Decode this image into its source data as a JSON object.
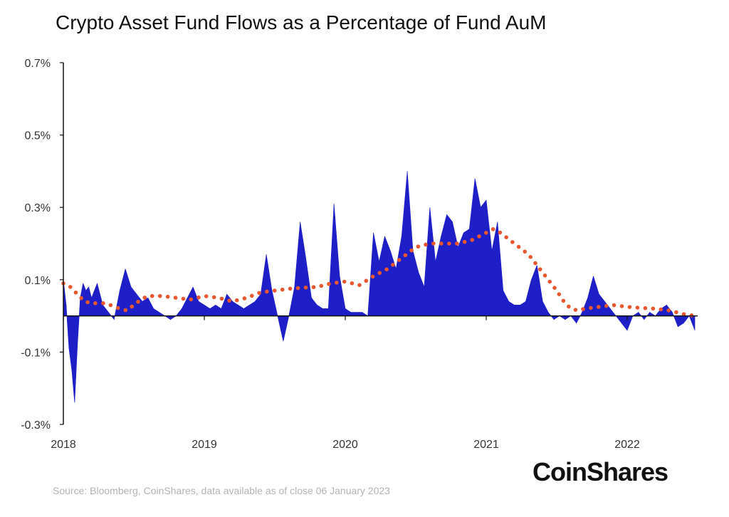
{
  "chart_data": {
    "type": "area",
    "title": "Crypto Asset Fund Flows as a Percentage of Fund AuM",
    "y_unit": "%",
    "ylim": [
      -0.3,
      0.7
    ],
    "yticks": [
      -0.3,
      -0.1,
      0.1,
      0.3,
      0.5,
      0.7
    ],
    "ytick_labels": [
      "-0.3%",
      "-0.1%",
      "0.1%",
      "0.3%",
      "0.5%",
      "0.7%"
    ],
    "xlim": [
      2018.0,
      2022.5
    ],
    "xticks": [
      2018,
      2019,
      2020,
      2021,
      2022
    ],
    "xtick_labels": [
      "2018",
      "2019",
      "2020",
      "2021",
      "2022"
    ],
    "grid": false,
    "legend": "none",
    "colors": {
      "flows": "#1f1fc8",
      "average": "#e8572f"
    },
    "series": [
      {
        "kind": "area",
        "x": [
          2018.0,
          2018.02,
          2018.04,
          2018.06,
          2018.08,
          2018.1,
          2018.12,
          2018.14,
          2018.16,
          2018.18,
          2018.2,
          2018.24,
          2018.28,
          2018.32,
          2018.36,
          2018.4,
          2018.44,
          2018.48,
          2018.52,
          2018.56,
          2018.6,
          2018.64,
          2018.68,
          2018.72,
          2018.76,
          2018.8,
          2018.84,
          2018.88,
          2018.92,
          2018.96,
          2019.0,
          2019.04,
          2019.08,
          2019.12,
          2019.16,
          2019.2,
          2019.24,
          2019.28,
          2019.32,
          2019.36,
          2019.4,
          2019.44,
          2019.48,
          2019.52,
          2019.56,
          2019.6,
          2019.64,
          2019.68,
          2019.72,
          2019.76,
          2019.8,
          2019.84,
          2019.88,
          2019.92,
          2019.96,
          2020.0,
          2020.04,
          2020.08,
          2020.12,
          2020.16,
          2020.2,
          2020.24,
          2020.28,
          2020.32,
          2020.36,
          2020.4,
          2020.44,
          2020.48,
          2020.52,
          2020.56,
          2020.6,
          2020.64,
          2020.68,
          2020.72,
          2020.76,
          2020.8,
          2020.84,
          2020.88,
          2020.92,
          2020.96,
          2021.0,
          2021.04,
          2021.08,
          2021.12,
          2021.16,
          2021.2,
          2021.24,
          2021.28,
          2021.32,
          2021.36,
          2021.4,
          2021.44,
          2021.48,
          2021.52,
          2021.56,
          2021.6,
          2021.64,
          2021.68,
          2021.72,
          2021.76,
          2021.8,
          2021.84,
          2021.88,
          2021.92,
          2021.96,
          2022.0,
          2022.04,
          2022.08,
          2022.12,
          2022.16,
          2022.2,
          2022.24,
          2022.28,
          2022.32,
          2022.36,
          2022.4,
          2022.44,
          2022.48
        ],
        "y": [
          0.1,
          0.03,
          -0.09,
          -0.15,
          -0.24,
          -0.08,
          0.05,
          0.09,
          0.07,
          0.08,
          0.05,
          0.09,
          0.03,
          0.01,
          -0.01,
          0.07,
          0.13,
          0.08,
          0.06,
          0.04,
          0.05,
          0.02,
          0.01,
          0.0,
          -0.01,
          0.0,
          0.02,
          0.05,
          0.08,
          0.04,
          0.03,
          0.02,
          0.03,
          0.02,
          0.06,
          0.04,
          0.03,
          0.02,
          0.03,
          0.04,
          0.06,
          0.17,
          0.07,
          0.0,
          -0.07,
          0.0,
          0.08,
          0.26,
          0.16,
          0.05,
          0.03,
          0.02,
          0.02,
          0.31,
          0.11,
          0.02,
          0.01,
          0.01,
          0.01,
          0.0,
          0.23,
          0.15,
          0.22,
          0.18,
          0.13,
          0.22,
          0.4,
          0.18,
          0.12,
          0.08,
          0.3,
          0.15,
          0.22,
          0.28,
          0.26,
          0.19,
          0.23,
          0.24,
          0.38,
          0.3,
          0.32,
          0.18,
          0.26,
          0.07,
          0.04,
          0.03,
          0.03,
          0.04,
          0.1,
          0.14,
          0.04,
          0.01,
          -0.01,
          0.0,
          -0.01,
          0.0,
          -0.02,
          0.01,
          0.05,
          0.11,
          0.06,
          0.04,
          0.02,
          0.0,
          -0.02,
          -0.04,
          0.0,
          0.01,
          -0.01,
          0.01,
          0.0,
          0.02,
          0.03,
          0.01,
          -0.03,
          -0.02,
          0.0,
          -0.04
        ]
      },
      {
        "kind": "dotted-line",
        "x": [
          2018.0,
          2018.05,
          2018.1,
          2018.15,
          2018.2,
          2018.3,
          2018.4,
          2018.45,
          2018.5,
          2018.55,
          2018.6,
          2018.7,
          2018.8,
          2018.9,
          2019.0,
          2019.1,
          2019.2,
          2019.3,
          2019.4,
          2019.5,
          2019.6,
          2019.7,
          2019.8,
          2019.9,
          2020.0,
          2020.1,
          2020.2,
          2020.3,
          2020.4,
          2020.5,
          2020.6,
          2020.7,
          2020.8,
          2020.9,
          2021.0,
          2021.05,
          2021.1,
          2021.2,
          2021.3,
          2021.4,
          2021.5,
          2021.55,
          2021.6,
          2021.65,
          2021.7,
          2021.8,
          2021.9,
          2022.0,
          2022.1,
          2022.2,
          2022.3,
          2022.4,
          2022.48
        ],
        "y": [
          0.09,
          0.08,
          0.06,
          0.04,
          0.035,
          0.035,
          0.02,
          0.015,
          0.03,
          0.045,
          0.055,
          0.055,
          0.05,
          0.045,
          0.055,
          0.05,
          0.04,
          0.05,
          0.065,
          0.07,
          0.075,
          0.078,
          0.08,
          0.09,
          0.095,
          0.085,
          0.11,
          0.13,
          0.16,
          0.19,
          0.2,
          0.2,
          0.2,
          0.21,
          0.23,
          0.24,
          0.23,
          0.2,
          0.17,
          0.12,
          0.07,
          0.04,
          0.02,
          0.015,
          0.02,
          0.025,
          0.03,
          0.025,
          0.022,
          0.02,
          0.015,
          0.005,
          0.0
        ]
      }
    ]
  },
  "source": "Source: Bloomberg, CoinShares, data available as of close 06 January 2023",
  "brand": "CoinShares"
}
